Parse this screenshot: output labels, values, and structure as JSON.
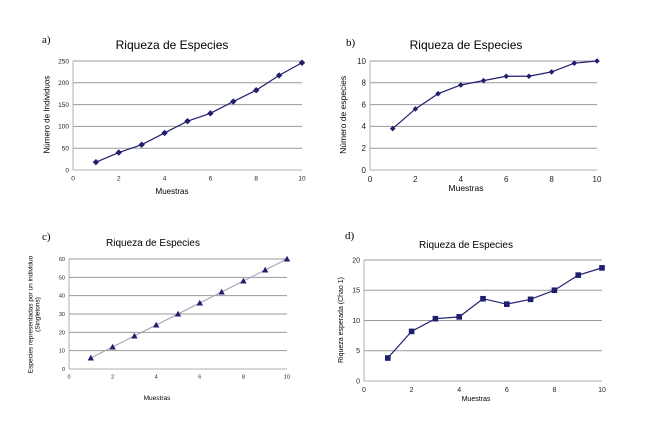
{
  "panels": [
    {
      "letter": "a)",
      "chart_data": {
        "type": "line",
        "title": "Riqueza de Especies",
        "xlabel": "Muestras",
        "ylabel": "Número de Individuos",
        "xlim": [
          0,
          10
        ],
        "ylim": [
          0,
          250
        ],
        "xticks": [
          0,
          2,
          4,
          6,
          8,
          10
        ],
        "yticks": [
          0,
          50,
          100,
          150,
          200,
          250
        ],
        "grid": "horizontal",
        "marker": "diamond",
        "color": "#1f1f6e",
        "x": [
          1,
          2,
          3,
          4,
          5,
          6,
          7,
          8,
          9,
          10
        ],
        "values": [
          18,
          40,
          58,
          85,
          112,
          130,
          157,
          183,
          217,
          246
        ]
      }
    },
    {
      "letter": "b)",
      "chart_data": {
        "type": "line",
        "title": "Riqueza de Especies",
        "xlabel": "Muestras",
        "ylabel": "Número de especies",
        "xlim": [
          0,
          10
        ],
        "ylim": [
          0,
          10
        ],
        "xticks": [
          0,
          2,
          4,
          6,
          8,
          10
        ],
        "yticks": [
          0,
          2,
          4,
          6,
          8,
          10
        ],
        "grid": "horizontal",
        "marker": "diamond",
        "color": "#1f1f6e",
        "x": [
          1,
          2,
          3,
          4,
          5,
          6,
          7,
          8,
          9,
          10
        ],
        "values": [
          3.8,
          5.6,
          7.0,
          7.8,
          8.2,
          8.6,
          8.6,
          9.0,
          9.8,
          10.0
        ]
      }
    },
    {
      "letter": "c)",
      "chart_data": {
        "type": "line",
        "title": "Riqueza de Especies",
        "xlabel": "Muestras",
        "ylabel": "Especies representadas por un individuo (Singletons)",
        "xlim": [
          0,
          10
        ],
        "ylim": [
          0,
          60
        ],
        "xticks": [
          0,
          2,
          4,
          6,
          8,
          10
        ],
        "yticks": [
          0,
          10,
          20,
          30,
          40,
          50,
          60
        ],
        "grid": "horizontal",
        "marker": "triangle",
        "color": "#1f1f6e",
        "x": [
          1,
          2,
          3,
          4,
          5,
          6,
          7,
          8,
          9,
          10
        ],
        "values": [
          6,
          12,
          18,
          24,
          30,
          36,
          42,
          48,
          54,
          60
        ]
      }
    },
    {
      "letter": "d)",
      "chart_data": {
        "type": "line",
        "title": "Riqueza de Especies",
        "xlabel": "Muestras",
        "ylabel": "Riqueza esperada (Chao 1)",
        "xlim": [
          0,
          10
        ],
        "ylim": [
          0,
          20
        ],
        "xticks": [
          0,
          2,
          4,
          6,
          8,
          10
        ],
        "yticks": [
          0,
          5,
          10,
          15,
          20
        ],
        "grid": "horizontal",
        "marker": "square",
        "color": "#1f1f6e",
        "x": [
          1,
          2,
          3,
          4,
          5,
          6,
          7,
          8,
          9,
          10
        ],
        "values": [
          3.8,
          8.2,
          10.3,
          10.6,
          13.6,
          12.7,
          13.5,
          15.0,
          17.5,
          18.7
        ]
      }
    }
  ]
}
